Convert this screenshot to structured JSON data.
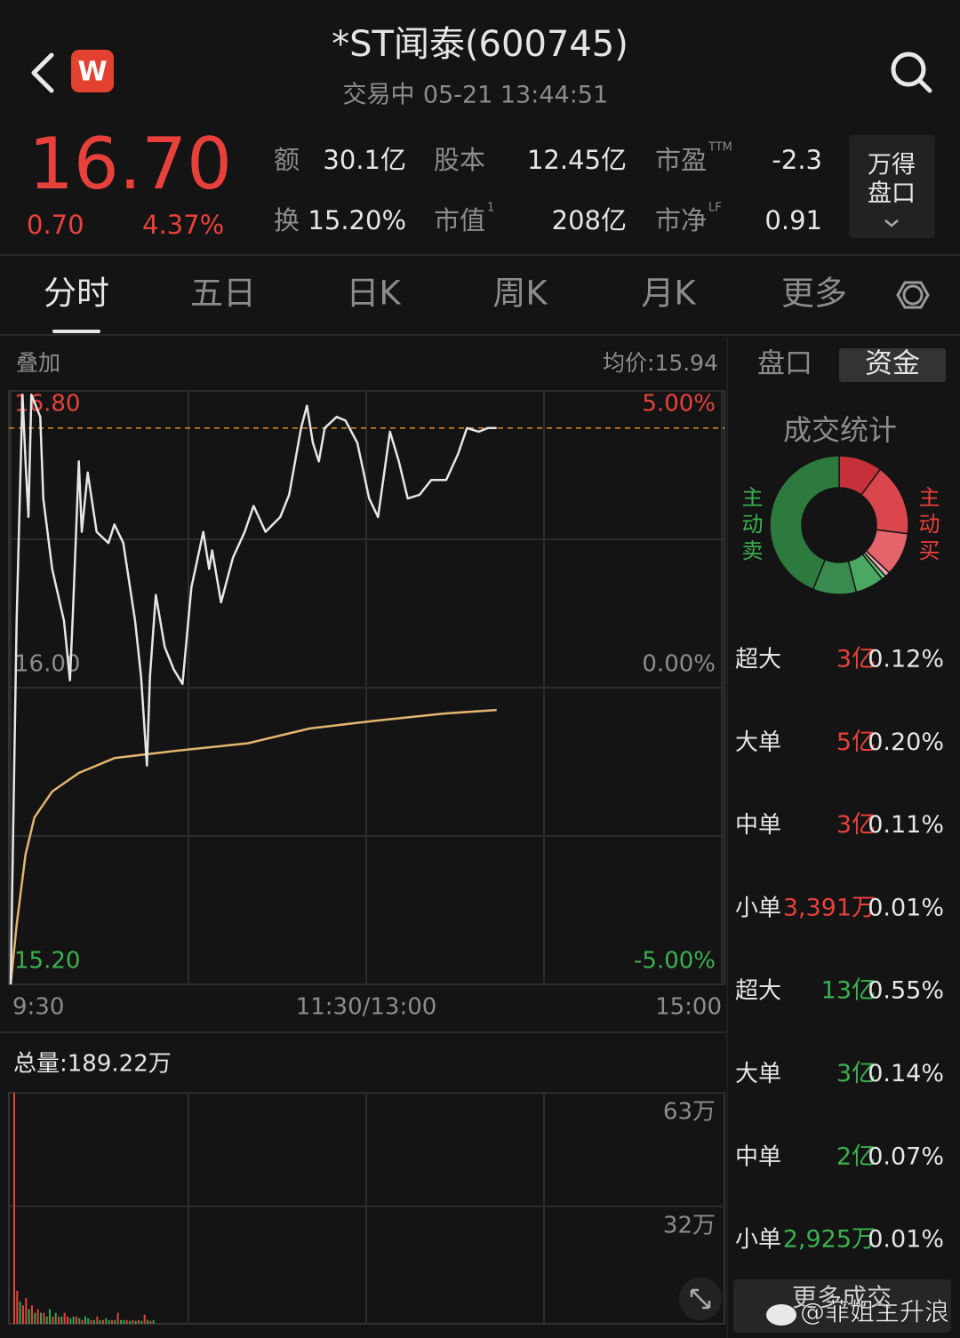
{
  "header": {
    "logo": "W",
    "title": "*ST闻泰(600745)",
    "status": "交易中",
    "datetime": "05-21 13:44:51"
  },
  "quote": {
    "price": {
      "value": 16.7,
      "label": "16.70"
    },
    "change": "0.70",
    "change_pct": "4.37%",
    "stats": [
      {
        "label": "额",
        "value": "30.1亿"
      },
      {
        "label": "股本",
        "value": "12.45亿"
      },
      {
        "label": "市盈",
        "sup": "TTM",
        "value": "-2.3"
      },
      {
        "label": "换",
        "value": "15.20%"
      },
      {
        "label": "市值",
        "sup": "1",
        "value": "208亿"
      },
      {
        "label": "市净",
        "sup": "LF",
        "value": "0.91"
      }
    ],
    "button": [
      "万得",
      "盘口"
    ]
  },
  "tabs": {
    "items": [
      "分时",
      "五日",
      "日K",
      "周K",
      "月K",
      "更多"
    ],
    "active": 0
  },
  "intraday": {
    "overlay": "叠加",
    "avg_label": "均价:15.94",
    "xlim": [
      0,
      240
    ],
    "xticks": [
      {
        "value": 0,
        "label": "9:30"
      },
      {
        "value": 120,
        "label": "11:30/13:00"
      },
      {
        "value": 240,
        "label": "15:00"
      }
    ],
    "ylim": [
      15.2,
      16.8
    ],
    "yticks": [
      {
        "value": 16.8,
        "label": "16.80"
      },
      {
        "value": 16,
        "label": "16.00"
      },
      {
        "value": 15.2,
        "label": "15.20"
      }
    ],
    "pct_ticks": [
      {
        "value": 5,
        "label": "5.00%"
      },
      {
        "value": 0,
        "label": "0.00%"
      },
      {
        "value": -5,
        "label": "-5.00%"
      }
    ],
    "price": {
      "color": "#e6e6e6",
      "x": [
        0,
        2,
        4,
        5,
        6,
        7,
        10,
        11,
        14,
        18,
        20,
        21,
        23,
        24,
        26,
        29,
        33,
        35,
        38,
        42,
        44,
        46,
        47,
        49,
        52,
        55,
        58,
        61,
        65,
        67,
        68,
        71,
        75,
        79,
        82,
        86,
        91,
        94,
        98,
        100,
        102,
        104,
        106,
        110,
        113,
        117,
        121,
        124,
        128,
        131,
        134,
        138,
        142,
        147,
        151,
        154,
        158,
        161,
        164
      ],
      "values": [
        15.2,
        16.18,
        16.79,
        16.61,
        16.46,
        16.79,
        16.73,
        16.51,
        16.32,
        16.18,
        16.02,
        16.2,
        16.61,
        16.42,
        16.58,
        16.42,
        16.39,
        16.44,
        16.39,
        16.18,
        16.03,
        15.79,
        16.03,
        16.25,
        16.11,
        16.05,
        16.01,
        16.27,
        16.42,
        16.32,
        16.37,
        16.23,
        16.35,
        16.42,
        16.49,
        16.42,
        16.46,
        16.52,
        16.7,
        16.76,
        16.66,
        16.61,
        16.7,
        16.73,
        16.72,
        16.66,
        16.51,
        16.46,
        16.69,
        16.61,
        16.51,
        16.52,
        16.56,
        16.56,
        16.63,
        16.7,
        16.69,
        16.7,
        16.7
      ]
    },
    "avg": {
      "color": "#e3b572",
      "x": [
        0,
        2,
        5,
        8,
        14,
        23,
        35,
        56,
        80,
        101,
        122,
        146,
        164
      ],
      "values": [
        15.2,
        15.36,
        15.55,
        15.65,
        15.72,
        15.77,
        15.81,
        15.83,
        15.85,
        15.89,
        15.91,
        15.93,
        15.94
      ]
    }
  },
  "volume": {
    "total_label": "总量:189.22万",
    "ylim": [
      0,
      63
    ],
    "yticks": [
      {
        "value": 63,
        "label": "63万"
      },
      {
        "value": 32,
        "label": "32万"
      }
    ],
    "colors": {
      "up": "#e8413c",
      "down": "#34a853"
    },
    "x": [
      0,
      1,
      2,
      3,
      4,
      5,
      6,
      7,
      8,
      9,
      10,
      11,
      12,
      13,
      14,
      15,
      16,
      17,
      18,
      19,
      20,
      21,
      22,
      23,
      24,
      25,
      26,
      27,
      28,
      29,
      30,
      31,
      32,
      33,
      34,
      35,
      36,
      37,
      38,
      39,
      40,
      41,
      42,
      43,
      44,
      45,
      46,
      47
    ],
    "values": [
      63,
      9,
      6,
      5,
      7,
      4,
      5,
      3,
      4,
      3,
      3,
      2,
      4,
      2,
      3,
      2,
      2,
      3,
      2,
      1.5,
      2,
      2,
      1.5,
      1,
      2,
      1.5,
      1,
      1,
      2,
      1,
      1,
      1.5,
      1,
      1,
      1,
      3,
      1,
      1,
      1,
      0.8,
      1,
      0.8,
      1,
      0.8,
      2.5,
      1,
      0.8,
      1
    ],
    "direction": [
      "up",
      "up",
      "down",
      "up",
      "up",
      "down",
      "up",
      "down",
      "up",
      "down",
      "up",
      "down",
      "down",
      "up",
      "down",
      "up",
      "down",
      "up",
      "up",
      "down",
      "down",
      "up",
      "down",
      "up",
      "down",
      "down",
      "up",
      "down",
      "up",
      "down",
      "up",
      "down",
      "down",
      "up",
      "down",
      "up",
      "down",
      "down",
      "up",
      "down",
      "up",
      "down",
      "up",
      "down",
      "up",
      "down",
      "up",
      "down"
    ]
  },
  "panel": {
    "tabs": {
      "items": [
        "盘口",
        "资金"
      ],
      "active": 1
    },
    "title": "成交统计",
    "sell_label": "主动卖",
    "buy_label": "主动买",
    "buy": {
      "color": "#e8413c",
      "rows": [
        {
          "type": "超大",
          "amount": 3,
          "amount_label": "3亿",
          "pct": "0.12%",
          "ring_color": "#c6303a"
        },
        {
          "type": "大单",
          "amount": 5,
          "amount_label": "5亿",
          "pct": "0.20%",
          "ring_color": "#d9474d"
        },
        {
          "type": "中单",
          "amount": 3,
          "amount_label": "3亿",
          "pct": "0.11%",
          "ring_color": "#e4646b"
        },
        {
          "type": "小单",
          "amount": 0.3391,
          "amount_label": "3,391万",
          "pct": "0.01%",
          "ring_color": "#f1a4aa"
        }
      ]
    },
    "sell": {
      "color": "#3cb050",
      "rows": [
        {
          "type": "超大",
          "amount": 13,
          "amount_label": "13亿",
          "pct": "0.55%",
          "ring_color": "#2d7a3f"
        },
        {
          "type": "大单",
          "amount": 3,
          "amount_label": "3亿",
          "pct": "0.14%",
          "ring_color": "#3a8a4f"
        },
        {
          "type": "中单",
          "amount": 2,
          "amount_label": "2亿",
          "pct": "0.07%",
          "ring_color": "#4aa862"
        },
        {
          "type": "小单",
          "amount": 0.2925,
          "amount_label": "2,925万",
          "pct": "0.01%",
          "ring_color": "#62c97c"
        }
      ]
    },
    "more_button": "更多成交"
  },
  "watermark": "@菲姐主升浪"
}
